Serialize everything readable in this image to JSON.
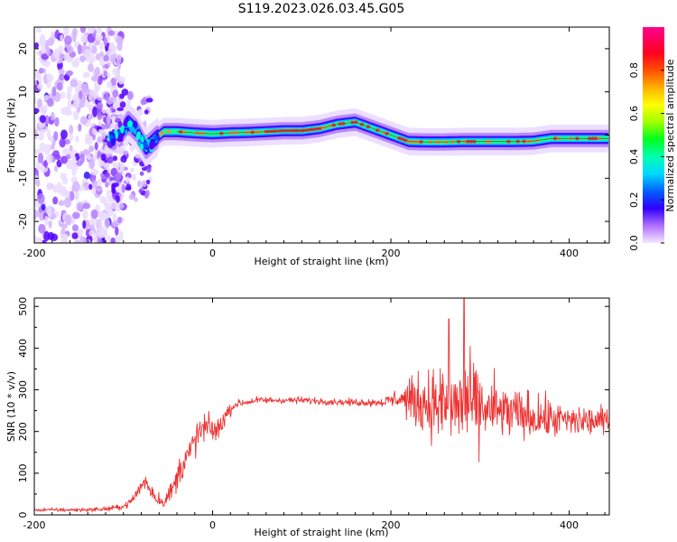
{
  "title": "S119.2023.026.03.45.G05",
  "chart_data": [
    {
      "type": "heatmap",
      "xlabel": "Height of straight line (km)",
      "ylabel": "Frequency (Hz)",
      "xlim": [
        -200,
        445
      ],
      "ylim": [
        -25,
        25
      ],
      "xticks": [
        -200,
        0,
        200,
        400
      ],
      "yticks": [
        20,
        10,
        0,
        -10,
        -20
      ],
      "ridge": {
        "x": [
          -115,
          -105,
          -95,
          -85,
          -75,
          -65,
          -55,
          -40,
          -20,
          0,
          20,
          40,
          60,
          80,
          100,
          120,
          140,
          160,
          180,
          200,
          220,
          240,
          260,
          280,
          300,
          320,
          340,
          360,
          380,
          400,
          420,
          445
        ],
        "y": [
          -1,
          -0.5,
          3,
          1,
          -3,
          -1,
          0.8,
          0.8,
          0.5,
          0.3,
          0.5,
          0.6,
          0.8,
          1.0,
          1.0,
          1.5,
          2.5,
          3.0,
          1.5,
          0.0,
          -1.5,
          -1.6,
          -1.6,
          -1.5,
          -1.5,
          -1.5,
          -1.5,
          -1.4,
          -0.8,
          -0.8,
          -0.8,
          -0.8
        ]
      },
      "colorbar": {
        "label": "Normalized spectral amplitude",
        "ticks": [
          "0.0",
          "0.2",
          "0.4",
          "0.6",
          "0.8"
        ],
        "range": [
          0,
          1
        ]
      }
    },
    {
      "type": "line",
      "xlabel": "Height of straight line (km)",
      "ylabel": "SNR (10 * v/v)",
      "xlim": [
        -200,
        445
      ],
      "ylim": [
        0,
        520
      ],
      "xticks": [
        -200,
        0,
        200,
        400
      ],
      "yticks": [
        0,
        100,
        200,
        300,
        400,
        500
      ],
      "color": "#ee3333",
      "envelope": {
        "x": [
          -200,
          -150,
          -120,
          -100,
          -90,
          -80,
          -75,
          -65,
          -55,
          -45,
          -35,
          -25,
          -15,
          -5,
          5,
          15,
          25,
          50,
          100,
          150,
          190,
          210,
          230,
          250,
          270,
          285,
          300,
          330,
          360,
          400,
          445
        ],
        "center": [
          12,
          12,
          14,
          20,
          35,
          70,
          80,
          45,
          30,
          60,
          120,
          150,
          200,
          210,
          200,
          240,
          265,
          275,
          275,
          270,
          270,
          280,
          270,
          265,
          260,
          270,
          255,
          245,
          235,
          225,
          225
        ],
        "spread": [
          6,
          6,
          8,
          10,
          15,
          30,
          35,
          30,
          20,
          40,
          60,
          60,
          60,
          50,
          40,
          30,
          15,
          12,
          12,
          12,
          15,
          40,
          100,
          130,
          150,
          150,
          140,
          100,
          80,
          60,
          50
        ]
      }
    }
  ]
}
